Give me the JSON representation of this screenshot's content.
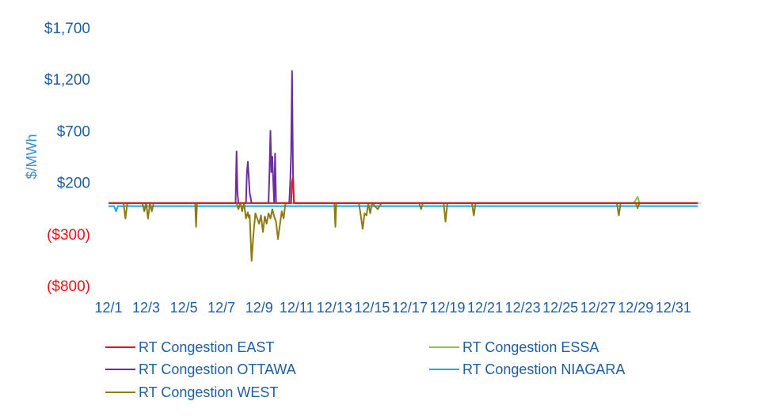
{
  "chart_data": {
    "type": "line",
    "title": "",
    "xlabel": "",
    "ylabel": "$/MWh",
    "ylim": [
      -800,
      1700
    ],
    "yticks": [
      {
        "value": 1700,
        "label": "$1,700",
        "color": "#1f5fa0"
      },
      {
        "value": 1200,
        "label": "$1,200",
        "color": "#1f5fa0"
      },
      {
        "value": 700,
        "label": "$700",
        "color": "#1f5fa0"
      },
      {
        "value": 200,
        "label": "$200",
        "color": "#1f5fa0"
      },
      {
        "value": -300,
        "label": "($300)",
        "color": "#e8141b"
      },
      {
        "value": -800,
        "label": "($800)",
        "color": "#e8141b"
      }
    ],
    "xlim": [
      1,
      32.5
    ],
    "xticks": [
      {
        "value": 1,
        "label": "12/1"
      },
      {
        "value": 3,
        "label": "12/3"
      },
      {
        "value": 5,
        "label": "12/5"
      },
      {
        "value": 7,
        "label": "12/7"
      },
      {
        "value": 9,
        "label": "12/9"
      },
      {
        "value": 11,
        "label": "12/11"
      },
      {
        "value": 13,
        "label": "12/13"
      },
      {
        "value": 15,
        "label": "12/15"
      },
      {
        "value": 17,
        "label": "12/17"
      },
      {
        "value": 19,
        "label": "12/19"
      },
      {
        "value": 21,
        "label": "12/21"
      },
      {
        "value": 23,
        "label": "12/23"
      },
      {
        "value": 25,
        "label": "12/25"
      },
      {
        "value": 27,
        "label": "12/27"
      },
      {
        "value": 29,
        "label": "12/29"
      },
      {
        "value": 31,
        "label": "12/31"
      }
    ],
    "legend_position": "bottom",
    "series": [
      {
        "name": "RT Congestion NIAGARA",
        "color": "#1fa7e0",
        "x": [
          1,
          1.3,
          1.4,
          1.5,
          1.6,
          32.3
        ],
        "y": [
          -30,
          -30,
          -80,
          -30,
          -30,
          -30
        ]
      },
      {
        "name": "RT Congestion WEST",
        "color": "#8c7a12",
        "x": [
          1,
          1.8,
          1.9,
          2.0,
          2.8,
          2.9,
          3.0,
          3.1,
          3.2,
          3.3,
          3.4,
          5.6,
          5.65,
          5.7,
          7.8,
          7.9,
          8.0,
          8.1,
          8.2,
          8.3,
          8.4,
          8.45,
          8.5,
          8.6,
          8.7,
          8.8,
          8.9,
          9.0,
          9.1,
          9.2,
          9.3,
          9.4,
          9.5,
          9.6,
          9.7,
          9.8,
          9.9,
          10.0,
          10.2,
          10.3,
          10.4,
          10.5,
          13.0,
          13.05,
          13.1,
          14.3,
          14.4,
          14.5,
          14.6,
          14.7,
          14.8,
          14.9,
          15.0,
          15.3,
          15.5,
          17.5,
          17.6,
          17.7,
          18.8,
          18.9,
          19.0,
          20.3,
          20.4,
          20.5,
          28.0,
          28.1,
          28.2,
          29.0,
          29.1,
          29.2,
          32.3
        ],
        "y": [
          0,
          0,
          -150,
          0,
          0,
          -80,
          0,
          -150,
          0,
          -80,
          0,
          0,
          -230,
          0,
          0,
          -60,
          0,
          -80,
          0,
          -150,
          -90,
          -140,
          -120,
          -560,
          -300,
          -100,
          -150,
          -200,
          -120,
          -280,
          -130,
          -200,
          -100,
          -150,
          -60,
          -130,
          -180,
          -350,
          -80,
          -150,
          0,
          0,
          0,
          -230,
          0,
          0,
          -120,
          -250,
          -100,
          -120,
          0,
          -100,
          0,
          -60,
          0,
          0,
          -60,
          0,
          0,
          -180,
          0,
          0,
          -120,
          0,
          0,
          -120,
          0,
          0,
          -50,
          0,
          0
        ],
        "type_note": ""
      },
      {
        "name": "RT Congestion ESSA",
        "color": "#8cc63f",
        "x": [
          1,
          28.9,
          29.0,
          29.1,
          29.2,
          32.3
        ],
        "y": [
          0,
          0,
          30,
          60,
          0,
          0
        ]
      },
      {
        "name": "RT Congestion OTTAWA",
        "color": "#6b2f9c",
        "x": [
          1,
          7.75,
          7.8,
          7.85,
          7.9,
          8.0,
          8.3,
          8.35,
          8.4,
          8.5,
          8.6,
          9.5,
          9.55,
          9.6,
          9.65,
          9.7,
          9.75,
          9.8,
          9.85,
          9.9,
          10.6,
          10.65,
          10.7,
          10.75,
          10.8,
          10.85,
          32.3
        ],
        "y": [
          0,
          0,
          500,
          100,
          0,
          0,
          0,
          300,
          400,
          100,
          0,
          0,
          300,
          700,
          300,
          450,
          200,
          0,
          480,
          0,
          0,
          200,
          480,
          1280,
          300,
          0,
          0
        ]
      },
      {
        "name": "RT Congestion EAST",
        "color": "#e8141b",
        "x": [
          1,
          10.7,
          10.75,
          10.8,
          10.85,
          32.3
        ],
        "y": [
          0,
          0,
          200,
          250,
          0,
          0
        ]
      }
    ],
    "legend": [
      {
        "name": "RT Congestion EAST",
        "color": "#e8141b"
      },
      {
        "name": "RT Congestion ESSA",
        "color": "#8cc63f"
      },
      {
        "name": "RT Congestion OTTAWA",
        "color": "#6b2f9c"
      },
      {
        "name": "RT Congestion NIAGARA",
        "color": "#1fa7e0"
      },
      {
        "name": "RT Congestion WEST",
        "color": "#8c7a12"
      }
    ]
  }
}
